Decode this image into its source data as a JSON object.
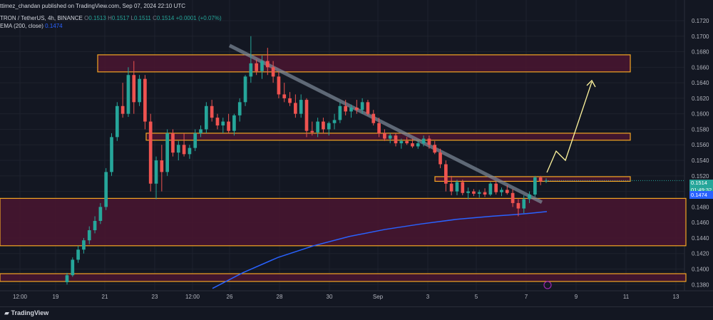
{
  "header": {
    "published": "ttimez_chandan published on TradingView.com, Sep 07, 2024 22:10 UTC",
    "symbol": "TRON / TetherUS, 4h, BINANCE",
    "o_label": "O",
    "o_val": "0.1513",
    "h_label": "H",
    "h_val": "0.1517",
    "l_label": "L",
    "l_val": "0.1511",
    "c_label": "C",
    "c_val": "0.1514",
    "change": "+0.0001 (+0.07%)",
    "ema_label": "EMA (200, close)",
    "ema_val": "0.1474"
  },
  "footer": {
    "brand": "TradingView"
  },
  "price_tags": {
    "last_price": "0.1514",
    "countdown": "01:49:32",
    "ema": "0.1474"
  },
  "colors": {
    "background": "#131722",
    "bull": "#26a69a",
    "bear": "#ef5350",
    "zone_fill": "#4a1530",
    "zone_border": "#f5a623",
    "ema_line": "#2962ff",
    "trendline": "#7f8c9a",
    "projection": "#fff59d"
  },
  "chart_data": {
    "type": "candlestick",
    "title": "TRON / TetherUS, 4h, BINANCE",
    "x_tick_labels": [
      "12:00",
      "19",
      "21",
      "23",
      "12:00",
      "26",
      "28",
      "30",
      "Sep",
      "3",
      "5",
      "7",
      "9",
      "11",
      "13"
    ],
    "y_tick_labels": [
      "0.1720",
      "0.1700",
      "0.1680",
      "0.1660",
      "0.1640",
      "0.1620",
      "0.1600",
      "0.1580",
      "0.1560",
      "0.1540",
      "0.1520",
      "0.1500",
      "0.1480",
      "0.1460",
      "0.1440",
      "0.1420",
      "0.1400",
      "0.1380"
    ],
    "ylim": [
      0.1375,
      0.1735
    ],
    "grid": true,
    "candles_ohlc": [
      [
        0.1383,
        0.1395,
        0.138,
        0.1392
      ],
      [
        0.1392,
        0.1415,
        0.139,
        0.1412
      ],
      [
        0.1412,
        0.143,
        0.1408,
        0.1425
      ],
      [
        0.1425,
        0.144,
        0.142,
        0.1437
      ],
      [
        0.1437,
        0.1455,
        0.1432,
        0.145
      ],
      [
        0.145,
        0.1468,
        0.1446,
        0.1462
      ],
      [
        0.1462,
        0.1485,
        0.1458,
        0.148
      ],
      [
        0.148,
        0.153,
        0.1476,
        0.1525
      ],
      [
        0.1525,
        0.1575,
        0.152,
        0.157
      ],
      [
        0.157,
        0.1615,
        0.1565,
        0.161
      ],
      [
        0.161,
        0.164,
        0.1595,
        0.16
      ],
      [
        0.16,
        0.166,
        0.1596,
        0.165
      ],
      [
        0.165,
        0.1668,
        0.16,
        0.1615
      ],
      [
        0.1615,
        0.165,
        0.161,
        0.1645
      ],
      [
        0.1645,
        0.165,
        0.158,
        0.159
      ],
      [
        0.159,
        0.16,
        0.15,
        0.151
      ],
      [
        0.151,
        0.1545,
        0.149,
        0.154
      ],
      [
        0.154,
        0.156,
        0.15,
        0.1525
      ],
      [
        0.1525,
        0.158,
        0.152,
        0.1575
      ],
      [
        0.1575,
        0.158,
        0.1545,
        0.155
      ],
      [
        0.155,
        0.1565,
        0.154,
        0.156
      ],
      [
        0.156,
        0.1575,
        0.1545,
        0.1548
      ],
      [
        0.1548,
        0.156,
        0.1542,
        0.1556
      ],
      [
        0.1556,
        0.158,
        0.1552,
        0.1575
      ],
      [
        0.1575,
        0.1585,
        0.157,
        0.158
      ],
      [
        0.158,
        0.1615,
        0.1575,
        0.161
      ],
      [
        0.161,
        0.1618,
        0.159,
        0.1595
      ],
      [
        0.1595,
        0.16,
        0.158,
        0.1585
      ],
      [
        0.1585,
        0.1595,
        0.1575,
        0.159
      ],
      [
        0.159,
        0.16,
        0.1575,
        0.1578
      ],
      [
        0.1578,
        0.16,
        0.1572,
        0.1598
      ],
      [
        0.1598,
        0.162,
        0.159,
        0.1615
      ],
      [
        0.1615,
        0.165,
        0.161,
        0.1648
      ],
      [
        0.1648,
        0.17,
        0.164,
        0.1665
      ],
      [
        0.1665,
        0.167,
        0.165,
        0.1655
      ],
      [
        0.1655,
        0.1675,
        0.1645,
        0.1668
      ],
      [
        0.1668,
        0.1685,
        0.165,
        0.166
      ],
      [
        0.166,
        0.1668,
        0.164,
        0.1648
      ],
      [
        0.1648,
        0.1655,
        0.162,
        0.1625
      ],
      [
        0.1625,
        0.164,
        0.1615,
        0.162
      ],
      [
        0.162,
        0.1628,
        0.161,
        0.1614
      ],
      [
        0.1614,
        0.1625,
        0.1595,
        0.16
      ],
      [
        0.16,
        0.1625,
        0.1595,
        0.1618
      ],
      [
        0.1618,
        0.162,
        0.157,
        0.1578
      ],
      [
        0.1578,
        0.159,
        0.1572,
        0.1576
      ],
      [
        0.1576,
        0.1595,
        0.157,
        0.159
      ],
      [
        0.159,
        0.1595,
        0.1575,
        0.158
      ],
      [
        0.158,
        0.159,
        0.1572,
        0.1588
      ],
      [
        0.1588,
        0.16,
        0.158,
        0.1592
      ],
      [
        0.1592,
        0.1615,
        0.1588,
        0.161
      ],
      [
        0.161,
        0.1618,
        0.1598,
        0.1603
      ],
      [
        0.1603,
        0.1612,
        0.1595,
        0.1608
      ],
      [
        0.1608,
        0.1618,
        0.16,
        0.1605
      ],
      [
        0.1605,
        0.162,
        0.16,
        0.1615
      ],
      [
        0.1615,
        0.1618,
        0.1598,
        0.16
      ],
      [
        0.16,
        0.1605,
        0.1585,
        0.1588
      ],
      [
        0.1588,
        0.1595,
        0.157,
        0.1575
      ],
      [
        0.1575,
        0.158,
        0.1565,
        0.1568
      ],
      [
        0.1568,
        0.1575,
        0.1562,
        0.1572
      ],
      [
        0.1572,
        0.1575,
        0.1558,
        0.1562
      ],
      [
        0.1562,
        0.1568,
        0.1555,
        0.1565
      ],
      [
        0.1565,
        0.157,
        0.156,
        0.1562
      ],
      [
        0.1562,
        0.1568,
        0.1556,
        0.1558
      ],
      [
        0.1558,
        0.1565,
        0.1555,
        0.1562
      ],
      [
        0.1562,
        0.1572,
        0.1558,
        0.1568
      ],
      [
        0.1568,
        0.1572,
        0.1555,
        0.156
      ],
      [
        0.156,
        0.1565,
        0.1548,
        0.155
      ],
      [
        0.155,
        0.1555,
        0.153,
        0.1535
      ],
      [
        0.1535,
        0.154,
        0.15,
        0.151
      ],
      [
        0.151,
        0.152,
        0.1495,
        0.15
      ],
      [
        0.15,
        0.1515,
        0.1495,
        0.1512
      ],
      [
        0.1512,
        0.1515,
        0.1495,
        0.1498
      ],
      [
        0.1498,
        0.1505,
        0.149,
        0.15
      ],
      [
        0.15,
        0.1503,
        0.1494,
        0.1497
      ],
      [
        0.1497,
        0.1502,
        0.1492,
        0.1499
      ],
      [
        0.1499,
        0.1504,
        0.1493,
        0.1496
      ],
      [
        0.1496,
        0.1512,
        0.1494,
        0.151
      ],
      [
        0.151,
        0.1513,
        0.1496,
        0.1499
      ],
      [
        0.1499,
        0.1505,
        0.1494,
        0.1502
      ],
      [
        0.1502,
        0.1508,
        0.1496,
        0.1498
      ],
      [
        0.1498,
        0.1503,
        0.148,
        0.1485
      ],
      [
        0.1485,
        0.149,
        0.1468,
        0.1478
      ],
      [
        0.1478,
        0.1495,
        0.1472,
        0.149
      ],
      [
        0.149,
        0.15,
        0.1485,
        0.1496
      ],
      [
        0.1496,
        0.152,
        0.1493,
        0.1518
      ],
      [
        0.1518,
        0.152,
        0.1508,
        0.1513
      ],
      [
        0.1513,
        0.1517,
        0.1511,
        0.1514
      ]
    ],
    "zones": [
      {
        "from": 0.1654,
        "to": 0.1676
      },
      {
        "from": 0.1566,
        "to": 0.1575
      },
      {
        "from": 0.1513,
        "to": 0.1519
      },
      {
        "from": 0.143,
        "to": 0.1491
      },
      {
        "from": 0.1384,
        "to": 0.1394
      }
    ],
    "ema_200_series": [
      0.1375,
      0.1395,
      0.1415,
      0.143,
      0.1442,
      0.1451,
      0.1458,
      0.1464,
      0.1468,
      0.147,
      0.1472,
      0.1474
    ]
  }
}
